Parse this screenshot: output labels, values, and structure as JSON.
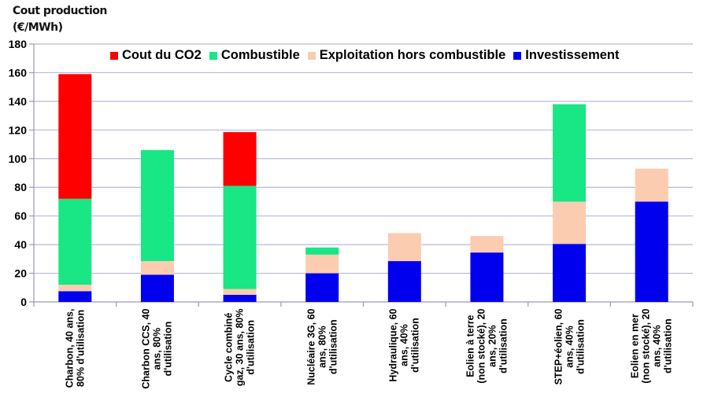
{
  "chart_data": {
    "type": "bar",
    "stacked": true,
    "title": "Cout production",
    "ylabel": "(€/MWh)",
    "ylim": [
      0,
      180
    ],
    "yticks": [
      0,
      20,
      40,
      60,
      80,
      100,
      120,
      140,
      160,
      180
    ],
    "grid": true,
    "legend_position": "top",
    "categories": [
      [
        "Charbon, 40 ans,",
        "80% d'utilisation"
      ],
      [
        "Charbon CCS, 40",
        "ans, 80%",
        "d'utilisation"
      ],
      [
        "Cycle combiné",
        "gaz, 30 ans, 80%",
        "d'utilisation"
      ],
      [
        "Nucléaire 3G, 60",
        "ans, 80%",
        "d'utilisation"
      ],
      [
        "Hydraulique, 60",
        "ans, 40%",
        "d'utilisation"
      ],
      [
        "Eolien à terre",
        "(non stocké), 20",
        "ans, 20%",
        "d'utilisation"
      ],
      [
        "STEP+éolien, 60",
        "ans, 40%",
        "d'utilisation"
      ],
      [
        "Eolien en mer",
        "(non stocké), 20",
        "ans, 40%",
        "d'utilisation"
      ]
    ],
    "series": [
      {
        "name": "Investissement",
        "color": "#0000ee",
        "values": [
          7.5,
          19,
          5,
          20,
          28.5,
          34.5,
          40.5,
          70
        ]
      },
      {
        "name": "Exploitation hors combustible",
        "color": "#fcccb0",
        "values": [
          4.5,
          9.5,
          4,
          13,
          19.5,
          11.5,
          29.5,
          23
        ]
      },
      {
        "name": "Combustible",
        "color": "#19e684",
        "values": [
          60,
          77.5,
          72,
          5,
          0,
          0,
          68,
          0
        ]
      },
      {
        "name": "Cout du CO2",
        "color": "#ff0000",
        "values": [
          87,
          0,
          37.5,
          0,
          0,
          0,
          0,
          0
        ]
      }
    ],
    "legend_order": [
      3,
      2,
      1,
      0
    ]
  }
}
